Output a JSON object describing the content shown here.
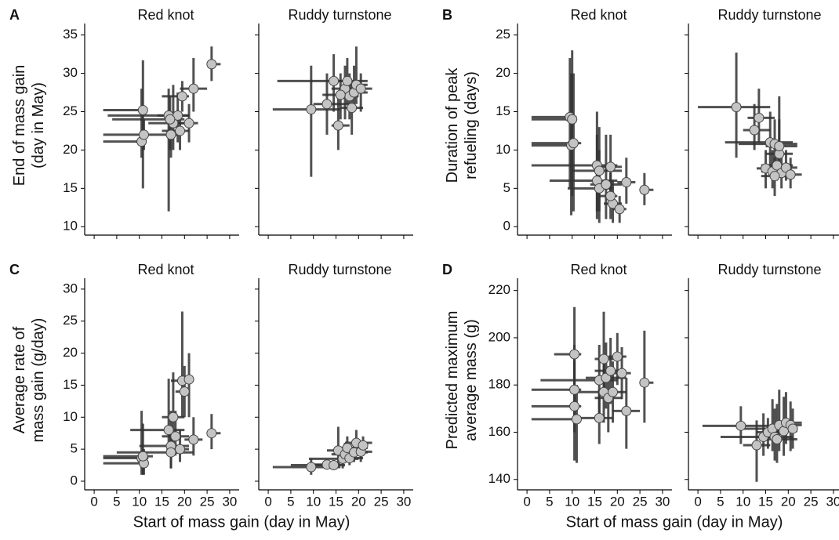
{
  "chart_data": [
    {
      "type": "scatter",
      "panel_label": "A",
      "title": "Red knot",
      "ylabel": [
        "End of mass gain",
        "(day in May)"
      ],
      "x": [
        10.8,
        10.5,
        11,
        16.5,
        17,
        17.5,
        18.5,
        19,
        19.5,
        21,
        22,
        26,
        16.8
      ],
      "y": [
        25.2,
        21.1,
        22,
        24.5,
        22,
        23.5,
        24.5,
        22.5,
        27,
        23.5,
        28,
        31.2,
        24
      ],
      "xlow": [
        2,
        2,
        2,
        3,
        11,
        12,
        14,
        15,
        15,
        17,
        19,
        25,
        4
      ],
      "xhigh": [
        11.5,
        11,
        12,
        21,
        19,
        20,
        21,
        21,
        21,
        23,
        25,
        28,
        20
      ],
      "ylow": [
        15,
        19,
        20,
        12,
        19,
        20,
        21,
        20,
        25,
        21,
        25,
        29,
        20
      ],
      "yhigh": [
        31.7,
        28,
        24,
        28,
        25,
        28.5,
        27.5,
        25,
        29,
        26,
        32,
        33.5,
        27
      ],
      "xlim": [
        -2.1,
        32.1
      ],
      "ylim": [
        8.9,
        36.5
      ],
      "xticks": [
        0,
        5,
        10,
        15,
        20,
        25,
        30
      ],
      "yticks": [
        10,
        15,
        20,
        25,
        30,
        35
      ],
      "marker_color": "#c4c4c4",
      "errorbar_color": "#333333"
    },
    {
      "type": "scatter",
      "title": "Ruddy turnstone",
      "x": [
        9.5,
        13,
        14.5,
        15.5,
        17,
        17.5,
        18,
        18.5,
        19,
        19.5,
        20.5,
        16
      ],
      "y": [
        25.3,
        26,
        29,
        23.2,
        28,
        29,
        27,
        25.5,
        27.5,
        28.5,
        28,
        27.2
      ],
      "xlow": [
        1,
        10,
        2,
        14,
        14,
        15,
        15,
        16,
        17,
        17,
        18,
        12
      ],
      "xhigh": [
        16,
        18,
        18,
        18,
        21,
        22,
        20,
        21,
        22,
        22,
        23,
        20
      ],
      "ylow": [
        16.5,
        22,
        25,
        20,
        24,
        26,
        24,
        22,
        25,
        26,
        25,
        24
      ],
      "yhigh": [
        31,
        30,
        32.5,
        27,
        31,
        32,
        30,
        29,
        31,
        33.5,
        30,
        30
      ],
      "xlim": [
        -2.1,
        32.1
      ],
      "ylim": [
        8.9,
        36.5
      ],
      "xticks": [
        0,
        5,
        10,
        15,
        20,
        25,
        30
      ],
      "yticks": [
        10,
        15,
        20,
        25,
        30,
        35
      ],
      "marker_color": "#c4c4c4",
      "errorbar_color": "#333333"
    },
    {
      "type": "scatter",
      "panel_label": "B",
      "title": "Red knot",
      "ylabel": [
        "Duration of peak",
        "refueling (days)"
      ],
      "x": [
        9.5,
        10,
        9.8,
        10.3,
        15.5,
        16,
        15.5,
        16,
        17.5,
        18.5,
        19,
        20.5,
        22,
        26,
        18.5
      ],
      "y": [
        14.3,
        14,
        10.6,
        10.9,
        8,
        7.3,
        6,
        5,
        5.5,
        7.8,
        3,
        2.3,
        5.8,
        4.8,
        4
      ],
      "xlow": [
        1,
        1,
        1,
        1,
        1,
        10,
        5,
        9,
        14,
        15,
        17,
        19,
        20,
        25,
        16
      ],
      "xhigh": [
        11,
        11,
        11,
        12,
        20,
        21,
        20,
        19,
        21,
        21,
        21,
        22,
        24,
        28,
        20
      ],
      "ylow": [
        5,
        4,
        1.5,
        2,
        2,
        2,
        1,
        0.5,
        1,
        3,
        0.5,
        0.5,
        3,
        2.8,
        1
      ],
      "yhigh": [
        22,
        23,
        20,
        20,
        15,
        13,
        12,
        10,
        12,
        12,
        6,
        4,
        9,
        7,
        7
      ],
      "xlim": [
        -2.1,
        32.1
      ],
      "ylim": [
        -1.1,
        26.5
      ],
      "xticks": [
        0,
        5,
        10,
        15,
        20,
        25,
        30
      ],
      "yticks": [
        0,
        5,
        10,
        15,
        20,
        25
      ],
      "marker_color": "#c4c4c4",
      "errorbar_color": "#333333"
    },
    {
      "type": "scatter",
      "title": "Ruddy turnstone",
      "x": [
        8.5,
        12.5,
        13.5,
        16,
        17,
        15,
        16.5,
        17.5,
        18,
        18.5,
        19.5,
        20.5,
        17,
        18
      ],
      "y": [
        15.6,
        12.6,
        14.2,
        11,
        10.8,
        7.6,
        7.2,
        8,
        9.5,
        7,
        7.7,
        6.8,
        6.6,
        10.5
      ],
      "xlow": [
        0,
        10,
        11,
        6,
        9,
        13,
        14,
        14,
        15,
        16,
        17,
        18,
        14,
        15
      ],
      "xhigh": [
        16,
        16,
        17,
        21,
        22,
        19,
        19,
        21,
        21,
        21,
        22,
        23,
        20,
        22
      ],
      "ylow": [
        9,
        10,
        11,
        7,
        8,
        5,
        5,
        6,
        7,
        5,
        6,
        5,
        4,
        8
      ],
      "yhigh": [
        22.7,
        16,
        18,
        15,
        14,
        10,
        10,
        11,
        14,
        10,
        10,
        9,
        9,
        17
      ],
      "xlim": [
        -2.1,
        32.1
      ],
      "ylim": [
        -1.1,
        26.5
      ],
      "xticks": [
        0,
        5,
        10,
        15,
        20,
        25,
        30
      ],
      "yticks": [
        0,
        5,
        10,
        15,
        20,
        25
      ],
      "marker_color": "#c4c4c4",
      "errorbar_color": "#333333"
    },
    {
      "type": "scatter",
      "panel_label": "C",
      "title": "Red knot",
      "ylabel": [
        "Average rate of",
        "mass gain (g/day)"
      ],
      "xlabel": "Start of mass gain (day in May)",
      "x": [
        10.5,
        11,
        10.8,
        16.5,
        17,
        17,
        17.5,
        18,
        19,
        19.5,
        20,
        21,
        22,
        26
      ],
      "y": [
        3.6,
        2.8,
        3.9,
        8,
        5.5,
        4.5,
        10,
        7,
        5,
        15.7,
        14,
        15.9,
        6.5,
        7.5
      ],
      "xlow": [
        2,
        2,
        2,
        8,
        10,
        5,
        15,
        15,
        16,
        17,
        18,
        19,
        20,
        25
      ],
      "xhigh": [
        12,
        12,
        13,
        20,
        21,
        22,
        20,
        21,
        21,
        21,
        21,
        22,
        24,
        28
      ],
      "ylow": [
        1,
        1,
        1,
        4,
        2,
        2,
        5,
        4,
        3,
        10,
        10,
        10,
        4,
        5
      ],
      "yhigh": [
        11,
        5,
        9,
        16,
        11,
        8,
        17,
        11,
        8,
        26.5,
        18,
        20,
        10,
        10.5
      ],
      "xlim": [
        -2.1,
        32.1
      ],
      "ylim": [
        -1.35,
        31.7
      ],
      "xticks": [
        0,
        5,
        10,
        15,
        20,
        25,
        30
      ],
      "yticks": [
        0,
        5,
        10,
        15,
        20,
        25,
        30
      ],
      "marker_color": "#c4c4c4",
      "errorbar_color": "#333333"
    },
    {
      "type": "scatter",
      "title": "Ruddy turnstone",
      "x": [
        9.5,
        13,
        14.5,
        15.5,
        16.5,
        17,
        17.5,
        18,
        19,
        19.5,
        20.5,
        21
      ],
      "y": [
        2.2,
        2.6,
        2.5,
        4.8,
        3.5,
        4.2,
        5.2,
        3.6,
        4.5,
        6,
        4.6,
        5.6
      ],
      "xlow": [
        1,
        10,
        5,
        13,
        9,
        14,
        15,
        16,
        16,
        17,
        18,
        19
      ],
      "xhigh": [
        16,
        16,
        17,
        19,
        20,
        21,
        22,
        21,
        22,
        23,
        23,
        22
      ],
      "ylow": [
        1,
        2,
        2,
        2.5,
        2,
        3,
        3,
        2.5,
        3,
        4,
        3,
        4
      ],
      "yhigh": [
        3.5,
        3,
        3.3,
        8.5,
        5,
        6,
        7,
        5,
        6,
        8,
        6,
        7
      ],
      "xlim": [
        -2.1,
        32.1
      ],
      "ylim": [
        -1.35,
        31.7
      ],
      "xticks": [
        0,
        5,
        10,
        15,
        20,
        25,
        30
      ],
      "yticks": [
        0,
        5,
        10,
        15,
        20,
        25,
        30
      ],
      "marker_color": "#c4c4c4",
      "errorbar_color": "#333333"
    },
    {
      "type": "scatter",
      "panel_label": "D",
      "title": "Red knot",
      "ylabel": [
        "Predicted maximum",
        "average mass (g)"
      ],
      "xlabel": "Start of mass gain (day in May)",
      "x": [
        10.5,
        10.5,
        10.5,
        11,
        16,
        16,
        17,
        17.5,
        17,
        18,
        18.5,
        19,
        20,
        21,
        22,
        26
      ],
      "y": [
        193,
        178,
        171,
        165.5,
        182,
        166,
        191,
        183,
        177,
        174.5,
        186,
        177,
        192,
        185,
        169,
        181
      ],
      "xlow": [
        6,
        1,
        1,
        1,
        3,
        10,
        15,
        13,
        10,
        15,
        15,
        16,
        18,
        19,
        19,
        25
      ],
      "xhigh": [
        12,
        12,
        12,
        12,
        20,
        19,
        20,
        22,
        20,
        21,
        21,
        22,
        22,
        23,
        25,
        28
      ],
      "ylow": [
        176,
        160,
        148,
        147,
        168,
        155,
        175,
        170,
        164,
        160,
        172,
        164,
        180,
        174,
        153,
        164
      ],
      "yhigh": [
        213,
        197,
        190,
        180,
        197,
        178,
        211,
        198,
        190,
        188,
        200,
        190,
        202,
        196,
        183,
        203
      ],
      "xlim": [
        -2.1,
        32.1
      ],
      "ylim": [
        135.6,
        225.2
      ],
      "xticks": [
        0,
        5,
        10,
        15,
        20,
        25,
        30
      ],
      "yticks": [
        140,
        160,
        180,
        200,
        220
      ],
      "marker_color": "#c4c4c4",
      "errorbar_color": "#333333"
    },
    {
      "type": "scatter",
      "title": "Ruddy turnstone",
      "x": [
        9.5,
        13,
        14.5,
        15.5,
        16.5,
        17,
        17.5,
        18,
        19,
        19.5,
        20.5,
        21
      ],
      "y": [
        162.7,
        154.5,
        158,
        160,
        161.5,
        158,
        157,
        163,
        160.5,
        164,
        163,
        161.5
      ],
      "xlow": [
        1,
        10,
        5,
        13,
        9,
        14,
        15,
        16,
        16,
        17,
        18,
        19
      ],
      "xhigh": [
        16,
        16,
        17,
        19,
        20,
        21,
        22,
        21,
        22,
        23,
        23,
        22
      ],
      "ylow": [
        155,
        139,
        150,
        153,
        152,
        148,
        147,
        152,
        150,
        155,
        152,
        153
      ],
      "yhigh": [
        171,
        165,
        168,
        166,
        174,
        170,
        172,
        178,
        175,
        177,
        173,
        170
      ],
      "xlim": [
        -2.1,
        32.1
      ],
      "ylim": [
        135.6,
        225.2
      ],
      "xticks": [
        0,
        5,
        10,
        15,
        20,
        25,
        30
      ],
      "yticks": [
        140,
        160,
        180,
        200,
        220
      ],
      "marker_color": "#c4c4c4",
      "errorbar_color": "#333333"
    }
  ]
}
